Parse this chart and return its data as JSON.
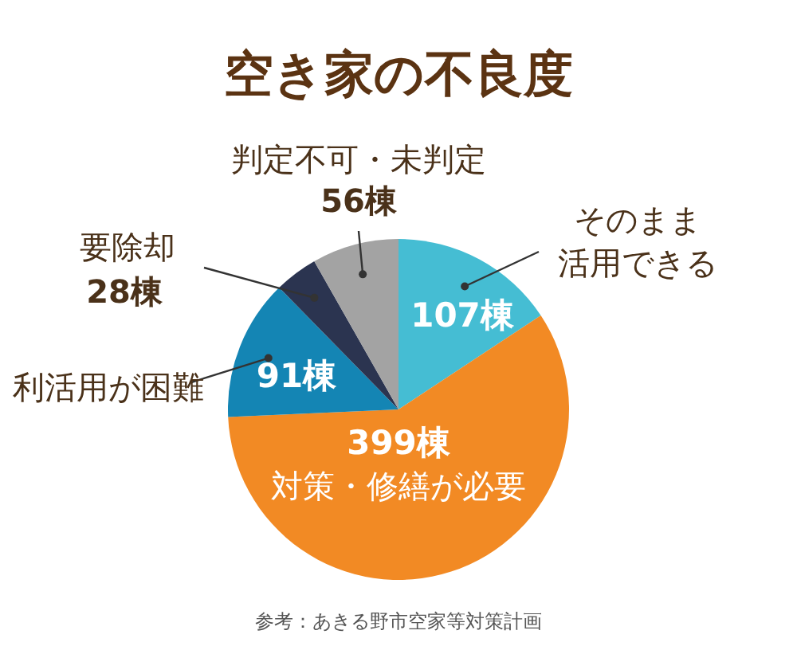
{
  "chart_data": {
    "type": "pie",
    "title": "空き家の不良度",
    "categories": [
      "そのまま活用できる",
      "対策・修繕が必要",
      "利活用が困難",
      "要除却",
      "判定不可・未判定"
    ],
    "values": [
      107,
      399,
      91,
      28,
      56
    ],
    "value_labels": [
      "107棟",
      "399棟",
      "91棟",
      "28棟",
      "56棟"
    ],
    "colors": [
      "#45bdd3",
      "#f28a24",
      "#1485b4",
      "#2b3450",
      "#a3a3a3"
    ],
    "annotations": [
      "参考：あきる野市空家等対策計画"
    ]
  }
}
